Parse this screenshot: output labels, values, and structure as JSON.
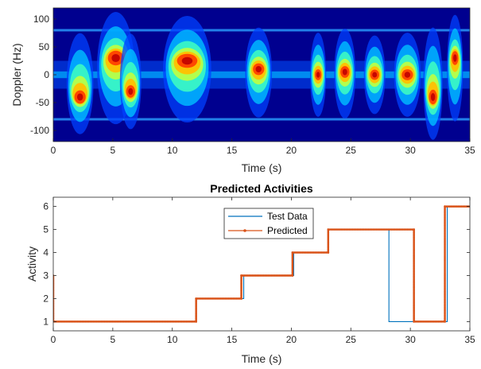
{
  "chart_data": [
    {
      "type": "heatmap",
      "title": "",
      "xlabel": "Time (s)",
      "ylabel": "Doppler (Hz)",
      "xlim": [
        0,
        35
      ],
      "ylim": [
        -120,
        120
      ],
      "xticks": [
        0,
        5,
        10,
        15,
        20,
        25,
        30,
        35
      ],
      "yticks": [
        -100,
        -50,
        0,
        50,
        100
      ],
      "colormap": "jet",
      "bursts": [
        {
          "t_start": 1.0,
          "t_end": 3.5,
          "peak_doppler": -40,
          "intensity": 0.9
        },
        {
          "t_start": 3.5,
          "t_end": 7.0,
          "peak_doppler": 30,
          "intensity": 1.0
        },
        {
          "t_start": 5.5,
          "t_end": 7.5,
          "peak_doppler": -30,
          "intensity": 0.85
        },
        {
          "t_start": 9.0,
          "t_end": 13.5,
          "peak_doppler": 25,
          "intensity": 0.95
        },
        {
          "t_start": 16.0,
          "t_end": 18.5,
          "peak_doppler": 10,
          "intensity": 0.8
        },
        {
          "t_start": 21.5,
          "t_end": 23.0,
          "peak_doppler": 0,
          "intensity": 0.75
        },
        {
          "t_start": 23.5,
          "t_end": 25.5,
          "peak_doppler": 5,
          "intensity": 0.8
        },
        {
          "t_start": 26.0,
          "t_end": 28.0,
          "peak_doppler": 0,
          "intensity": 0.7
        },
        {
          "t_start": 28.5,
          "t_end": 31.0,
          "peak_doppler": 0,
          "intensity": 0.75
        },
        {
          "t_start": 31.0,
          "t_end": 32.8,
          "peak_doppler": -40,
          "intensity": 1.0
        },
        {
          "t_start": 33.0,
          "t_end": 34.5,
          "peak_doppler": 30,
          "intensity": 0.95
        }
      ],
      "horizontal_lines_doppler": [
        80,
        -80
      ]
    },
    {
      "type": "line",
      "title": "Predicted Activities",
      "xlabel": "Time (s)",
      "ylabel": "Activity",
      "xlim": [
        0,
        35
      ],
      "ylim": [
        0.6,
        6.4
      ],
      "xticks": [
        0,
        5,
        10,
        15,
        20,
        25,
        30,
        35
      ],
      "yticks": [
        1,
        2,
        3,
        4,
        5,
        6
      ],
      "legend_position": "top-center",
      "series": [
        {
          "name": "Test Data",
          "color": "#0072BD",
          "x": [
            0,
            12.0,
            12.0,
            16.0,
            16.0,
            20.2,
            20.2,
            23.1,
            23.1,
            28.2,
            28.2,
            33.1,
            33.1,
            35
          ],
          "y": [
            1,
            1,
            2,
            2,
            3,
            3,
            4,
            4,
            5,
            5,
            1,
            1,
            6,
            6
          ]
        },
        {
          "name": "Predicted",
          "color": "#D95319",
          "marker": "dot",
          "x": [
            0,
            0,
            12.0,
            12.0,
            15.8,
            15.8,
            20.1,
            20.1,
            23.1,
            23.1,
            30.3,
            30.3,
            32.9,
            32.9,
            35
          ],
          "y": [
            3,
            1,
            1,
            2,
            2,
            3,
            3,
            4,
            4,
            5,
            5,
            1,
            1,
            6,
            6
          ]
        }
      ]
    }
  ]
}
